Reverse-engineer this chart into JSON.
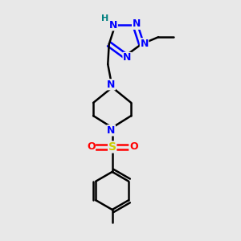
{
  "bg_color": "#e8e8e8",
  "bond_color": "#000000",
  "bond_width": 1.8,
  "atom_colors": {
    "N": "#0000ff",
    "H": "#008080",
    "S": "#cccc00",
    "O": "#ff0000",
    "C": "#000000"
  },
  "font_size": 9,
  "small_font": 8
}
